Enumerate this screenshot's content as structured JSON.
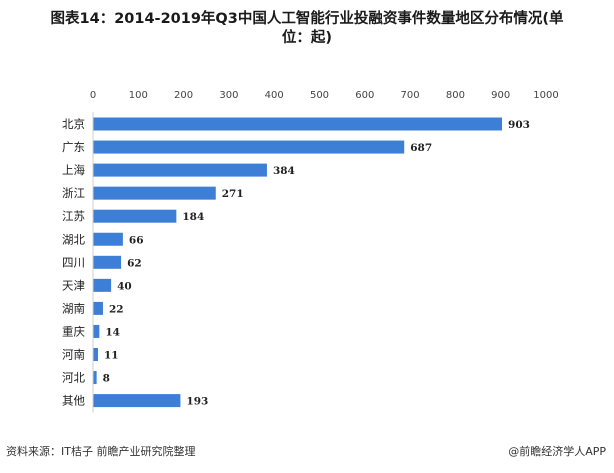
{
  "title_line1": "图表14：2014-2019年Q3中国人工智能行业投融资事件数量地区分布情况(单",
  "title_line2": "位：起)",
  "footer": {
    "source": "资料来源：IT桔子 前瞻产业研究院整理",
    "brand": "@前瞻经济学人APP"
  },
  "colors": {
    "bar": "#3d7fd6",
    "axis": "#cfcfcf"
  },
  "chart_data": {
    "type": "bar",
    "orientation": "horizontal",
    "categories": [
      "北京",
      "广东",
      "上海",
      "浙江",
      "江苏",
      "湖北",
      "四川",
      "天津",
      "湖南",
      "重庆",
      "河南",
      "河北",
      "其他"
    ],
    "values": [
      903,
      687,
      384,
      271,
      184,
      66,
      62,
      40,
      22,
      14,
      11,
      8,
      193
    ],
    "xlim": [
      0,
      1000
    ],
    "xticks": [
      0,
      100,
      200,
      300,
      400,
      500,
      600,
      700,
      800,
      900,
      1000
    ],
    "grid": false,
    "legend": "none",
    "data_labels": true
  }
}
